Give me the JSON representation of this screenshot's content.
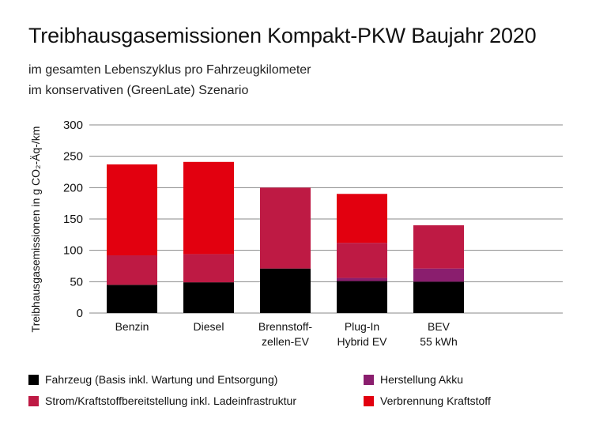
{
  "header": {
    "title": "Treibhausgasemissionen Kompakt-PKW Baujahr 2020",
    "subtitle_1": "im gesamten Lebenszyklus pro Fahrzeugkilometer",
    "subtitle_2": "im konservativen (GreenLate) Szenario"
  },
  "chart_data": {
    "type": "bar",
    "stacked": true,
    "ylabel": "Treibhausgasemissionen in g CO₂-Äq-/km",
    "ylim": [
      0,
      300
    ],
    "yticks": [
      0,
      50,
      100,
      150,
      200,
      250,
      300
    ],
    "grid": true,
    "legend_position": "bottom",
    "categories": [
      [
        "Benzin"
      ],
      [
        "Diesel"
      ],
      [
        "Brennstoff-",
        "zellen-EV"
      ],
      [
        "Plug-In",
        "Hybrid EV"
      ],
      [
        "BEV",
        "55 kWh"
      ]
    ],
    "series": [
      {
        "name": "Fahrzeug (Basis inkl. Wartung und Entsorgung)",
        "color": "#000000",
        "values": [
          45,
          49,
          71,
          51,
          50
        ]
      },
      {
        "name": "Herstellung Akku",
        "color": "#8a1e6e",
        "values": [
          0,
          0,
          0,
          5,
          21
        ]
      },
      {
        "name": "Strom/Kraftstoffbereitstellung inkl. Ladeinfrastruktur",
        "color": "#be1a44",
        "values": [
          47,
          45,
          129,
          56,
          69
        ]
      },
      {
        "name": "Verbrennung Kraftstoff",
        "color": "#e2000f",
        "values": [
          145,
          147,
          0,
          78,
          0
        ]
      }
    ]
  }
}
